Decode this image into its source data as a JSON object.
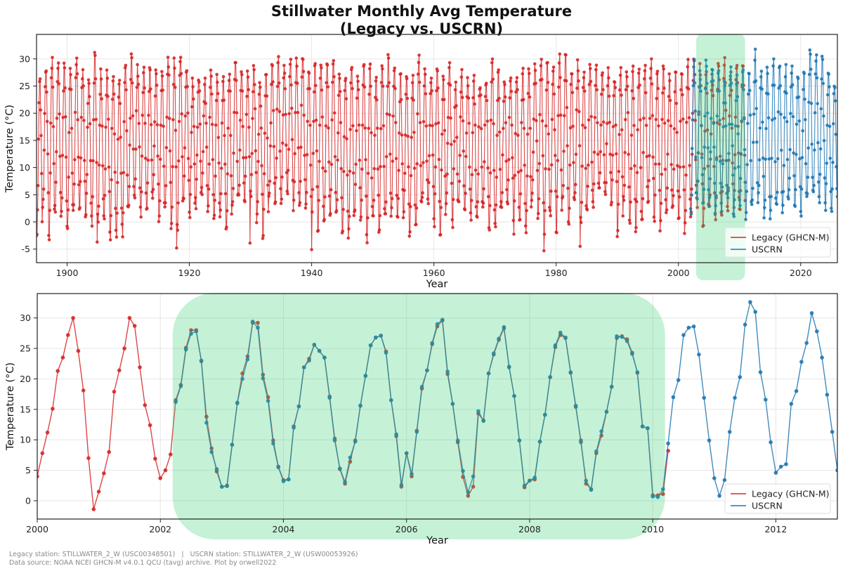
{
  "figure": {
    "title_line1": "Stillwater Monthly Avg Temperature",
    "title_line2": "(Legacy vs. USCRN)",
    "footer_line1": "Legacy station: STILLWATER_2_W (USC00348501)   |   USCRN station: STILLWATER_2_W (USW00053926)",
    "footer_line2": "Data source: NOAA NCEI GHCN-M v4.0.1 QCU (tavg) archive. Plot by orwell2022"
  },
  "colors": {
    "legacy": "#d62728",
    "uscrn": "#1f77b4",
    "highlight": "#2ecc71",
    "grid": "#e6e6e6"
  },
  "chart_data": [
    {
      "type": "line",
      "title": "Stillwater Monthly Avg Temperature (Legacy vs. USCRN)",
      "xlabel": "Year",
      "ylabel": "Temperature (°C)",
      "xlim": [
        1895,
        2026
      ],
      "ylim": [
        -7.5,
        34.5
      ],
      "xticks": [
        1900,
        1920,
        1940,
        1960,
        1980,
        2000,
        2020
      ],
      "yticks": [
        -5,
        0,
        5,
        10,
        15,
        20,
        25,
        30
      ],
      "grid": true,
      "legend_position": "bottom-right",
      "highlight_range": [
        2002.9,
        2010.9
      ],
      "series": [
        {
          "name": "Legacy (GHCN-M)",
          "color": "#d62728",
          "x_start": 1895.0,
          "x_end": 2010.9,
          "monthly_min_range": [
            -5.3,
            5
          ],
          "monthly_max_range": [
            26,
            32.3
          ],
          "extreme_lows": [
            [
              1904.9,
              -3.7
            ],
            [
              1917.9,
              -4.8
            ],
            [
              1929.9,
              -3.9
            ],
            [
              1940.0,
              -5.1
            ],
            [
              1978.0,
              -5.3
            ],
            [
              1983.9,
              -4.5
            ]
          ]
        },
        {
          "name": "USCRN",
          "color": "#1f77b4",
          "x_start": 2002.0,
          "x_end": 2026.0,
          "monthly_min_range": [
            -1.2,
            4.5
          ],
          "monthly_max_range": [
            26,
            32.6
          ]
        }
      ]
    },
    {
      "type": "line",
      "title": "",
      "xlabel": "Year",
      "ylabel": "Temperature (°C)",
      "xlim": [
        2000,
        2013
      ],
      "ylim": [
        -3,
        34
      ],
      "xticks": [
        2000,
        2002,
        2004,
        2006,
        2008,
        2010,
        2012
      ],
      "yticks": [
        0,
        5,
        10,
        15,
        20,
        25,
        30
      ],
      "grid": true,
      "legend_position": "bottom-right",
      "highlight_range": [
        2002.2,
        2010.2
      ],
      "series": [
        {
          "name": "Legacy (GHCN-M)",
          "color": "#d62728",
          "x_start": 2000.0,
          "values": [
            4.0,
            7.8,
            11.2,
            15.1,
            21.3,
            23.5,
            27.2,
            30.0,
            24.6,
            18.1,
            7.0,
            -1.4,
            1.5,
            4.5,
            8.0,
            17.9,
            21.4,
            25.0,
            30.0,
            28.7,
            21.9,
            15.7,
            12.4,
            6.9,
            3.7,
            5.0,
            7.6,
            16.5,
            19.0,
            25.1,
            28.0,
            28.0,
            22.9,
            13.8,
            8.6,
            4.8,
            2.3,
            2.5,
            9.2,
            16.1,
            20.9,
            23.7,
            29.2,
            29.2,
            20.7,
            17.0,
            9.9,
            5.6,
            3.4,
            3.5,
            12.2,
            15.5,
            21.9,
            23.3,
            25.6,
            24.6,
            23.5,
            17.1,
            10.2,
            5.2,
            2.8,
            6.4,
            9.9,
            15.6,
            20.5,
            25.5,
            26.8,
            27.1,
            24.5,
            16.5,
            10.6,
            2.3,
            7.8,
            4.0,
            11.5,
            18.4,
            21.4,
            25.7,
            28.6,
            29.6,
            20.8,
            15.9,
            9.6,
            3.9,
            0.8,
            2.3,
            14.3,
            13.2,
            20.9,
            24.0,
            26.4,
            28.3,
            22.0,
            17.2,
            9.9,
            2.2,
            3.3,
            3.5,
            9.7,
            14.1,
            20.3,
            25.2,
            27.2,
            26.7,
            21.0,
            15.4,
            9.9,
            2.8,
            1.9,
            7.8,
            10.7,
            14.6,
            18.7,
            26.7,
            27.0,
            26.5,
            24.3,
            21.0,
            12.2,
            11.9,
            0.9,
            0.9,
            1.1,
            8.2
          ]
        },
        {
          "name": "USCRN",
          "color": "#1f77b4",
          "x_start": 2002.25,
          "values": [
            16.2,
            18.8,
            24.8,
            27.4,
            27.8,
            23.0,
            12.8,
            8.0,
            5.2,
            2.3,
            2.4,
            9.2,
            16.0,
            20.0,
            23.2,
            29.4,
            28.4,
            20.1,
            16.4,
            9.4,
            5.5,
            3.2,
            3.5,
            12.0,
            15.5,
            21.9,
            23.0,
            25.6,
            24.6,
            23.5,
            16.9,
            9.9,
            5.3,
            3.1,
            7.1,
            9.7,
            15.6,
            20.5,
            25.5,
            26.8,
            27.1,
            24.3,
            16.5,
            10.9,
            2.6,
            7.8,
            4.4,
            11.3,
            18.7,
            21.4,
            25.9,
            29.0,
            29.7,
            21.2,
            15.9,
            9.9,
            4.9,
            1.4,
            4.0,
            14.7,
            13.1,
            20.9,
            24.2,
            26.6,
            28.5,
            21.9,
            17.2,
            9.9,
            2.5,
            3.3,
            3.8,
            9.7,
            14.1,
            20.3,
            25.5,
            27.6,
            26.8,
            21.1,
            15.6,
            9.6,
            3.3,
            1.8,
            8.1,
            11.4,
            14.6,
            18.7,
            27.0,
            26.9,
            26.2,
            24.1,
            21.1,
            12.2,
            11.9,
            0.7,
            0.6,
            1.9,
            9.4,
            17.0,
            19.8,
            27.2,
            28.4,
            28.6,
            24.0,
            16.9,
            9.9,
            3.7,
            0.8,
            3.4,
            11.3,
            16.9,
            20.3,
            28.9,
            32.6,
            31.0,
            21.1,
            16.6,
            9.6,
            4.6,
            5.6,
            6.0,
            15.9,
            18.0,
            22.8,
            25.9,
            30.8,
            27.8,
            23.5,
            17.4,
            11.3,
            5.0
          ]
        }
      ]
    }
  ]
}
